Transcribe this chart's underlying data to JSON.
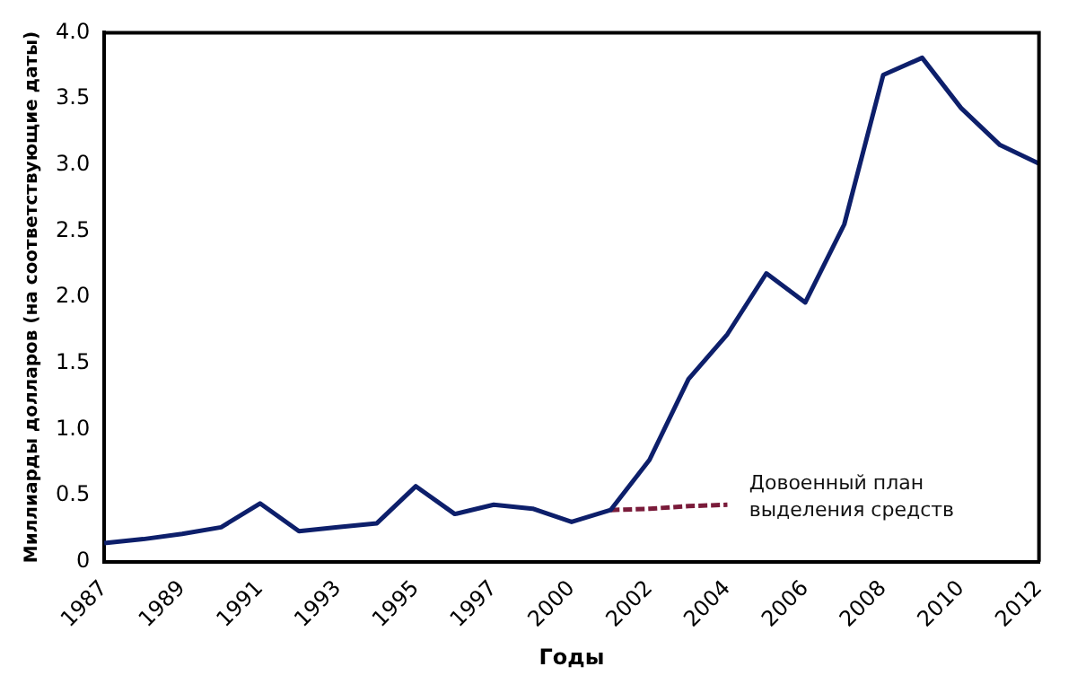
{
  "chart_data": {
    "type": "line",
    "xlabel": "Годы",
    "ylabel": "Миллиарды долларов (на соответствующие даты)",
    "categories": [
      "1987",
      null,
      "1989",
      null,
      "1991",
      null,
      "1993",
      null,
      "1995",
      null,
      "1997",
      null,
      "2000",
      null,
      "2002",
      null,
      "2004",
      null,
      "2006",
      null,
      "2008",
      null,
      "2010",
      null,
      "2012"
    ],
    "series": [
      {
        "color": "#0d1f6b",
        "values": [
          0.14,
          0.17,
          0.21,
          0.26,
          0.44,
          0.23,
          0.26,
          0.29,
          0.57,
          0.36,
          0.43,
          0.4,
          0.3,
          0.39,
          0.77,
          1.38,
          1.72,
          2.18,
          1.96,
          2.55,
          3.68,
          3.81,
          3.43,
          3.15,
          3.01
        ]
      },
      {
        "color": "#7a1b3a",
        "line_style": "dashed",
        "values": [
          null,
          null,
          null,
          null,
          null,
          null,
          null,
          null,
          null,
          null,
          null,
          null,
          null,
          0.39,
          0.4,
          0.42,
          0.43,
          null,
          null,
          null,
          null,
          null,
          null,
          null,
          null
        ]
      }
    ],
    "annotations": [
      "Довоенный план выделения средств"
    ],
    "ylim": [
      0,
      4
    ],
    "yticks": [
      0,
      0.5,
      {
        "value": 1,
        "label": "1.0"
      },
      1.5,
      {
        "value": 2,
        "label": "2.0"
      },
      2.5,
      {
        "value": 3,
        "label": "3.0"
      },
      3.5,
      {
        "value": 4,
        "label": "4.0"
      }
    ],
    "grid": false,
    "legend": false
  }
}
